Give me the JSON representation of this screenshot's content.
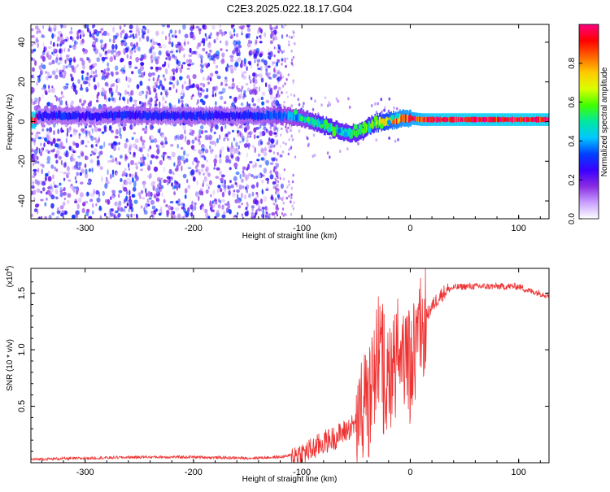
{
  "title": "C2E3.2025.022.18.17.G04",
  "colors": {
    "line": "#ee3333",
    "axis": "#000000",
    "scatter": "#7a2ee8",
    "colormap": [
      "#ffffff",
      "#c8a0ff",
      "#8a2be2",
      "#3a00ff",
      "#0040ff",
      "#00c8ff",
      "#00e8a0",
      "#40ff00",
      "#d8ff00",
      "#ffcc00",
      "#ff6600",
      "#ff0000",
      "#ff0080"
    ]
  },
  "chart_data": [
    {
      "type": "heatmap",
      "name": "spectrogram",
      "xlabel": "Height of straight line (km)",
      "ylabel": "Frequency (Hz)",
      "xlim": [
        -350,
        128
      ],
      "ylim": [
        -49,
        49
      ],
      "xticks": [
        -300,
        -200,
        -100,
        0,
        100
      ],
      "yticks": [
        -40,
        -20,
        0,
        20,
        40
      ],
      "xtick_labels": [
        "-300",
        "-200",
        "-100",
        "0",
        "100"
      ],
      "ytick_labels": [
        "-40",
        "-20",
        "0",
        "20",
        "40"
      ],
      "scatter_region": {
        "x_range": [
          -350,
          -118
        ],
        "y_range": [
          -49,
          49
        ],
        "amplitude": 0.15
      },
      "band": [
        {
          "x": -345,
          "y": 3,
          "amp": 0.25
        },
        {
          "x": -320,
          "y": 3,
          "amp": 0.3
        },
        {
          "x": -300,
          "y": 3,
          "amp": 0.25
        },
        {
          "x": -280,
          "y": 3,
          "amp": 0.3
        },
        {
          "x": -260,
          "y": 3,
          "amp": 0.28
        },
        {
          "x": -240,
          "y": 3,
          "amp": 0.3
        },
        {
          "x": -220,
          "y": 3,
          "amp": 0.28
        },
        {
          "x": -200,
          "y": 3,
          "amp": 0.3
        },
        {
          "x": -180,
          "y": 3,
          "amp": 0.28
        },
        {
          "x": -160,
          "y": 3,
          "amp": 0.28
        },
        {
          "x": -140,
          "y": 3,
          "amp": 0.3
        },
        {
          "x": -120,
          "y": 3,
          "amp": 0.35
        },
        {
          "x": -100,
          "y": 2,
          "amp": 0.4
        },
        {
          "x": -85,
          "y": -1,
          "amp": 0.5
        },
        {
          "x": -75,
          "y": -3,
          "amp": 0.55
        },
        {
          "x": -65,
          "y": -5,
          "amp": 0.5
        },
        {
          "x": -55,
          "y": -6,
          "amp": 0.5
        },
        {
          "x": -45,
          "y": -5,
          "amp": 0.55
        },
        {
          "x": -35,
          "y": -1,
          "amp": 0.6
        },
        {
          "x": -25,
          "y": 0,
          "amp": 0.7
        },
        {
          "x": -15,
          "y": 1,
          "amp": 0.8
        },
        {
          "x": -5,
          "y": 2,
          "amp": 0.85
        },
        {
          "x": 10,
          "y": 1,
          "amp": 0.9
        },
        {
          "x": 30,
          "y": 1,
          "amp": 0.95
        },
        {
          "x": 50,
          "y": 1,
          "amp": 0.95
        },
        {
          "x": 70,
          "y": 1,
          "amp": 0.95
        },
        {
          "x": 90,
          "y": 1,
          "amp": 0.95
        },
        {
          "x": 110,
          "y": 1,
          "amp": 0.95
        },
        {
          "x": 128,
          "y": 1,
          "amp": 0.95
        }
      ],
      "colorbar": {
        "label": "Normalized spectral amplitude",
        "range": [
          0,
          1
        ],
        "ticks": [
          0,
          0.2,
          0.4,
          0.6,
          0.8
        ],
        "tick_labels": [
          "0.0",
          "0.2",
          "0.4",
          "0.6",
          "0.8"
        ]
      }
    },
    {
      "type": "line",
      "name": "snr",
      "xlabel": "Height of straight line (km)",
      "ylabel": "SNR (10 * v/v)",
      "exponent_label": "(x10",
      "exponent_power": "4",
      "exponent_close": ")",
      "xlim": [
        -350,
        128
      ],
      "ylim": [
        0,
        1.72
      ],
      "xticks": [
        -300,
        -200,
        -100,
        0,
        100
      ],
      "yticks": [
        0.5,
        1.0,
        1.5
      ],
      "xtick_labels": [
        "-300",
        "-200",
        "-100",
        "0",
        "100"
      ],
      "ytick_labels": [
        "0.5",
        "1.0",
        "1.5"
      ],
      "series": [
        {
          "name": "SNR",
          "x": [
            -350,
            -300,
            -250,
            -200,
            -150,
            -120,
            -100,
            -90,
            -80,
            -70,
            -60,
            -50,
            -45,
            -40,
            -35,
            -30,
            -27,
            -25,
            -20,
            -15,
            -10,
            -5,
            0,
            5,
            10,
            15,
            20,
            25,
            30,
            35,
            40,
            50,
            60,
            70,
            80,
            90,
            100,
            110,
            120,
            128
          ],
          "y": [
            0.03,
            0.04,
            0.05,
            0.05,
            0.04,
            0.05,
            0.08,
            0.12,
            0.18,
            0.22,
            0.28,
            0.35,
            0.45,
            0.6,
            0.8,
            1.05,
            1.2,
            0.9,
            0.85,
            1.0,
            1.05,
            0.9,
            0.95,
            1.1,
            1.25,
            1.3,
            1.38,
            1.45,
            1.5,
            1.53,
            1.55,
            1.56,
            1.56,
            1.56,
            1.56,
            1.56,
            1.56,
            1.52,
            1.5,
            1.48
          ]
        }
      ]
    }
  ]
}
